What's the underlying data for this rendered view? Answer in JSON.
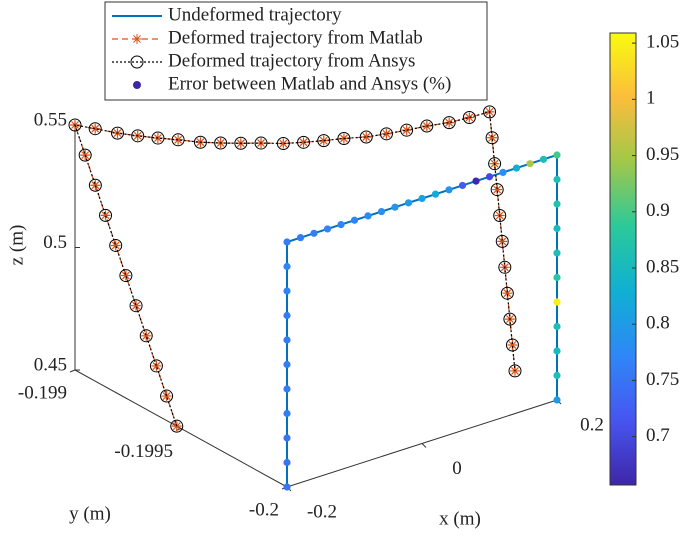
{
  "chart_data": {
    "type": "line3d",
    "xlabel": "x (m)",
    "ylabel": "y (m)",
    "zlabel": "z (m)",
    "xlim": [
      -0.2,
      0.2
    ],
    "xticks": [
      -0.2,
      0,
      0.2
    ],
    "ylim": [
      -0.2,
      -0.199
    ],
    "yticks": [
      -0.2,
      -0.1995,
      -0.199
    ],
    "zlim": [
      0.45,
      0.55
    ],
    "zticks": [
      0.45,
      0.5,
      0.55
    ],
    "grid": false,
    "series": [
      {
        "name": "Undeformed trajectory",
        "color": "#0072bd",
        "style": "solid",
        "x": [
          -0.2,
          -0.2,
          -0.2,
          -0.2,
          -0.2,
          -0.2,
          -0.2,
          -0.2,
          -0.2,
          -0.2,
          -0.2,
          -0.18,
          -0.16,
          -0.14,
          -0.12,
          -0.1,
          -0.08,
          -0.06,
          -0.04,
          -0.02,
          0,
          0.02,
          0.04,
          0.06,
          0.08,
          0.1,
          0.12,
          0.14,
          0.16,
          0.18,
          0.2,
          0.2,
          0.2,
          0.2,
          0.2,
          0.2,
          0.2,
          0.2,
          0.2,
          0.2,
          0.2
        ],
        "y": [
          -0.2,
          -0.2,
          -0.2,
          -0.2,
          -0.2,
          -0.2,
          -0.2,
          -0.2,
          -0.2,
          -0.2,
          -0.2,
          -0.2,
          -0.2,
          -0.2,
          -0.2,
          -0.2,
          -0.2,
          -0.2,
          -0.2,
          -0.2,
          -0.2,
          -0.2,
          -0.2,
          -0.2,
          -0.2,
          -0.2,
          -0.2,
          -0.2,
          -0.2,
          -0.2,
          -0.2,
          -0.2,
          -0.2,
          -0.2,
          -0.2,
          -0.2,
          -0.2,
          -0.2,
          -0.2,
          -0.2,
          -0.2
        ],
        "z": [
          0.45,
          0.46,
          0.47,
          0.48,
          0.49,
          0.5,
          0.51,
          0.52,
          0.53,
          0.54,
          0.55,
          0.55,
          0.55,
          0.55,
          0.55,
          0.55,
          0.55,
          0.55,
          0.55,
          0.55,
          0.55,
          0.55,
          0.55,
          0.55,
          0.55,
          0.55,
          0.55,
          0.55,
          0.55,
          0.55,
          0.55,
          0.54,
          0.53,
          0.52,
          0.51,
          0.5,
          0.49,
          0.48,
          0.47,
          0.46,
          0.45
        ]
      },
      {
        "name": "Deformed trajectory from Matlab",
        "color": "#d95319",
        "style": "dashed",
        "marker": "asterisk",
        "x": [
          -0.2,
          -0.2,
          -0.2,
          -0.2,
          -0.2,
          -0.2,
          -0.2,
          -0.2,
          -0.2,
          -0.2,
          -0.2,
          -0.1795,
          -0.159,
          -0.1385,
          -0.118,
          -0.0975,
          -0.077,
          -0.0565,
          -0.036,
          -0.0155,
          0.005,
          0.0255,
          0.046,
          0.0665,
          0.087,
          0.1075,
          0.128,
          0.1485,
          0.169,
          0.1895,
          0.21,
          0.21,
          0.21,
          0.21,
          0.21,
          0.21,
          0.21,
          0.21,
          0.21,
          0.21,
          0.21
        ],
        "y": [
          -0.19948,
          -0.199432,
          -0.199384,
          -0.199336,
          -0.199288,
          -0.19924,
          -0.199192,
          -0.199144,
          -0.199096,
          -0.199048,
          -0.199,
          -0.19903,
          -0.19907,
          -0.1991,
          -0.19913,
          -0.19916,
          -0.1992,
          -0.19923,
          -0.19926,
          -0.19929,
          -0.19933,
          -0.19936,
          -0.19939,
          -0.19942,
          -0.19946,
          -0.19949,
          -0.19952,
          -0.19955,
          -0.19959,
          -0.19962,
          -0.19965,
          -0.199662,
          -0.199674,
          -0.199686,
          -0.199698,
          -0.19971,
          -0.199722,
          -0.199734,
          -0.199746,
          -0.199758,
          -0.19977
        ],
        "z": [
          0.45,
          0.46,
          0.47,
          0.48,
          0.49,
          0.5,
          0.51,
          0.52,
          0.53,
          0.54,
          0.55,
          0.5481,
          0.5464,
          0.5449,
          0.5436,
          0.5425,
          0.5416,
          0.5409,
          0.5404,
          0.5401,
          0.54,
          0.5401,
          0.5404,
          0.5409,
          0.5416,
          0.5425,
          0.5436,
          0.5449,
          0.5464,
          0.5481,
          0.55,
          0.54,
          0.53,
          0.52,
          0.51,
          0.5,
          0.49,
          0.48,
          0.47,
          0.46,
          0.45
        ]
      },
      {
        "name": "Deformed trajectory from Ansys",
        "color": "#000000",
        "style": "dotted",
        "marker": "circle",
        "x": [
          -0.2,
          -0.2,
          -0.2,
          -0.2,
          -0.2,
          -0.2,
          -0.2,
          -0.2,
          -0.2,
          -0.2,
          -0.2,
          -0.1795,
          -0.159,
          -0.1385,
          -0.118,
          -0.0975,
          -0.077,
          -0.0565,
          -0.036,
          -0.0155,
          0.005,
          0.0255,
          0.046,
          0.0665,
          0.087,
          0.1075,
          0.128,
          0.1485,
          0.169,
          0.1895,
          0.21,
          0.21,
          0.21,
          0.21,
          0.21,
          0.21,
          0.21,
          0.21,
          0.21,
          0.21,
          0.21
        ],
        "y": [
          -0.19948,
          -0.199432,
          -0.199384,
          -0.199336,
          -0.199288,
          -0.19924,
          -0.199192,
          -0.199144,
          -0.199096,
          -0.199048,
          -0.199,
          -0.19903,
          -0.19907,
          -0.1991,
          -0.19913,
          -0.19916,
          -0.1992,
          -0.19923,
          -0.19926,
          -0.19929,
          -0.19933,
          -0.19936,
          -0.19939,
          -0.19942,
          -0.19946,
          -0.19949,
          -0.19952,
          -0.19955,
          -0.19959,
          -0.19962,
          -0.19965,
          -0.199662,
          -0.199674,
          -0.199686,
          -0.199698,
          -0.19971,
          -0.199722,
          -0.199734,
          -0.199746,
          -0.199758,
          -0.19977
        ],
        "z": [
          0.45,
          0.46,
          0.47,
          0.48,
          0.49,
          0.5,
          0.51,
          0.52,
          0.53,
          0.54,
          0.55,
          0.5481,
          0.5464,
          0.5449,
          0.5436,
          0.5425,
          0.5416,
          0.5409,
          0.5404,
          0.5401,
          0.54,
          0.5401,
          0.5404,
          0.5409,
          0.5416,
          0.5425,
          0.5436,
          0.5449,
          0.5464,
          0.5481,
          0.55,
          0.54,
          0.53,
          0.52,
          0.51,
          0.5,
          0.49,
          0.48,
          0.47,
          0.46,
          0.45
        ]
      }
    ],
    "error": {
      "name": "Error between Matlab and Ansys (%)",
      "color": "#3e26a8",
      "values": [
        0.75,
        0.75,
        0.75,
        0.76,
        0.76,
        0.76,
        0.76,
        0.76,
        0.77,
        0.77,
        0.76,
        0.76,
        0.76,
        0.77,
        0.77,
        0.77,
        0.78,
        0.78,
        0.79,
        0.8,
        0.81,
        0.82,
        0.79,
        0.72,
        0.66,
        0.7,
        0.78,
        0.83,
        0.95,
        0.86,
        0.9,
        0.86,
        0.87,
        0.85,
        0.86,
        0.88,
        1.05,
        0.86,
        0.85,
        0.86,
        0.8
      ]
    },
    "colorbar": {
      "clim": [
        0.657,
        1.059
      ],
      "ticks": [
        0.7,
        0.75,
        0.8,
        0.85,
        0.9,
        0.95,
        1,
        1.05
      ],
      "colormap": [
        "#3e26a8",
        "#4755f0",
        "#2e87f7",
        "#0fb0d3",
        "#2bc99a",
        "#a0c84a",
        "#fbbd3d",
        "#f9fb0e"
      ]
    }
  }
}
